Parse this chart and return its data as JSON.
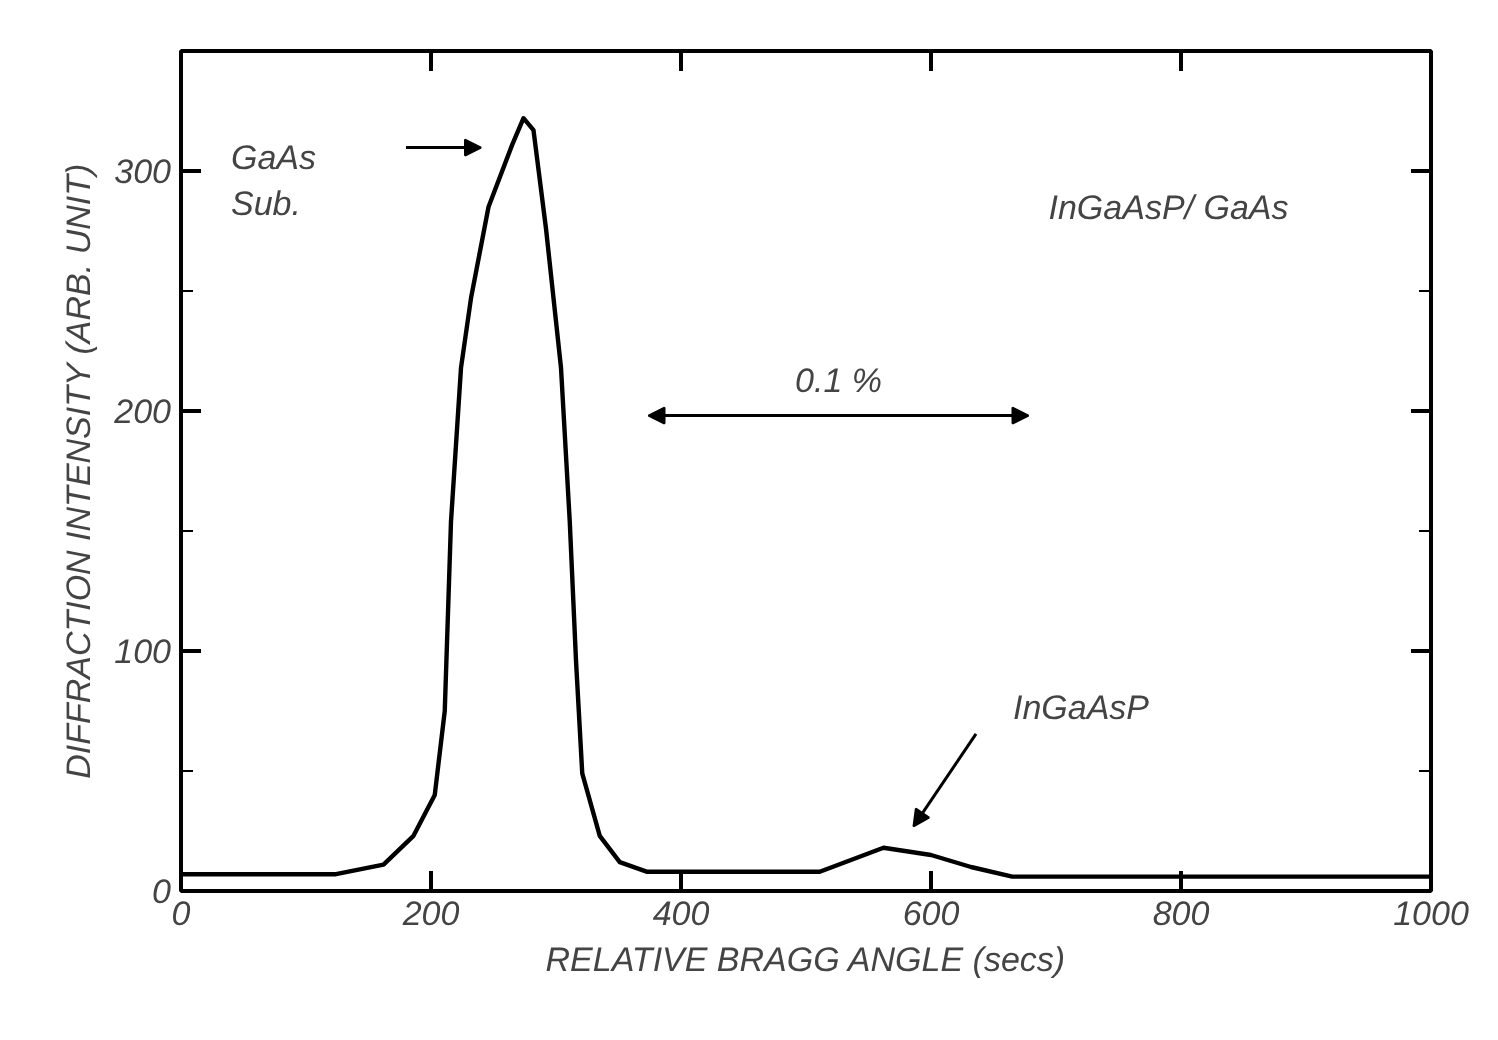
{
  "chart_data": {
    "type": "line",
    "xlabel": "RELATIVE BRAGG ANGLE (secs)",
    "ylabel": "DIFFRACTION INTENSITY (ARB. UNIT)",
    "x": [
      0,
      124,
      162,
      186,
      203,
      211,
      216,
      224,
      232,
      246,
      265,
      274,
      282,
      292,
      304,
      311,
      316,
      321,
      335,
      351,
      373,
      502,
      511,
      562,
      600,
      632,
      665,
      1000
    ],
    "series": [
      {
        "color": "#000000",
        "values": [
          7,
          7,
          11,
          23,
          40,
          75,
          154,
          218,
          247,
          285,
          311,
          322,
          317,
          276,
          218,
          154,
          96,
          49,
          23,
          12,
          8,
          8,
          8,
          18,
          15,
          10,
          6,
          6
        ]
      }
    ],
    "xlim": [
      0,
      1000
    ],
    "ylim": [
      0,
      350
    ],
    "xticks": [
      0,
      200,
      400,
      600,
      800,
      1000
    ],
    "yticks": [
      0,
      100,
      200,
      300
    ],
    "grid": false,
    "marker": "none",
    "line_style": "solid",
    "annotations": [
      "GaAs\nSub.",
      "InGaAsP",
      "0.1 %",
      "InGaAsP/ GaAs"
    ]
  }
}
